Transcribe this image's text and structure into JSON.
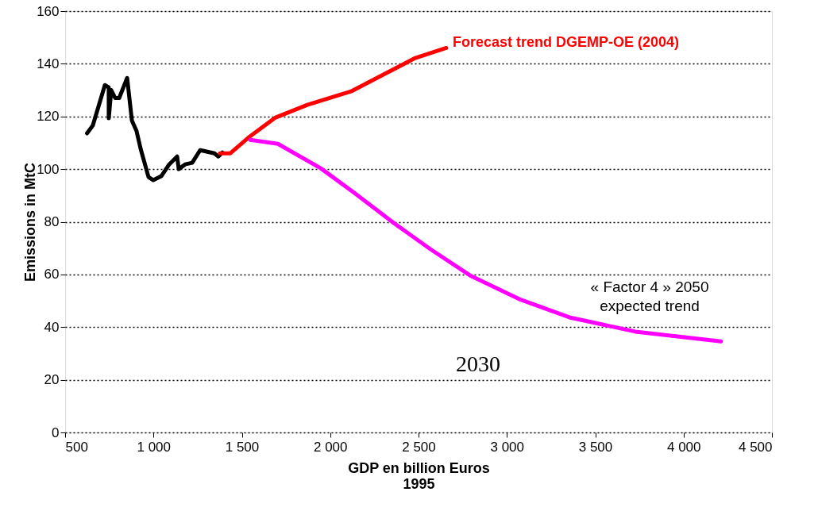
{
  "chart_data": {
    "type": "line",
    "xlabel": "GDP en billion Euros\n1995",
    "ylabel": "Emissions in MtC",
    "xlim": [
      500,
      4500
    ],
    "ylim": [
      0,
      160
    ],
    "xticks": [
      500,
      {
        "value": 1000,
        "label": "1 000"
      },
      {
        "value": 1500,
        "label": "1 500"
      },
      {
        "value": 2000,
        "label": "2 000"
      },
      {
        "value": 2500,
        "label": "2 500"
      },
      {
        "value": 3000,
        "label": "3 000"
      },
      {
        "value": 3500,
        "label": "3 500"
      },
      {
        "value": 4000,
        "label": "4 000"
      },
      {
        "value": 4500,
        "label": "4 500"
      }
    ],
    "yticks": [
      0,
      20,
      40,
      60,
      80,
      100,
      120,
      140,
      160
    ],
    "grid": "y",
    "line_style": "solid",
    "marker": "none",
    "series": [
      {
        "color": "#000000",
        "x": [
          624,
          657,
          725,
          747,
          747,
          761,
          783,
          806,
          851,
          878,
          904,
          927,
          972,
          999,
          1044,
          1089,
          1134,
          1143,
          1179,
          1219,
          1264,
          1345,
          1367,
          1390
        ],
        "values": [
          113.6,
          116.6,
          131.9,
          131,
          119.3,
          130,
          127,
          127,
          134.6,
          118.4,
          114.5,
          107.8,
          97,
          95.8,
          97.3,
          101.8,
          104.8,
          100,
          101.8,
          102.4,
          107.2,
          106,
          104.8,
          106.3
        ]
      },
      {
        "name": "Forecast trend  DGEMP-OE (2004)",
        "color": "#ff0000",
        "x": [
          1376,
          1435,
          1538,
          1691,
          1871,
          2118,
          2275,
          2482,
          2657
        ],
        "values": [
          106,
          106,
          112,
          119.6,
          124.4,
          129.5,
          135,
          142.2,
          146
        ]
      },
      {
        "color": "#ff00ff",
        "x": [
          1547,
          1704,
          1947,
          2136,
          2361,
          2567,
          2792,
          3071,
          3354,
          3727,
          4212
        ],
        "values": [
          111.1,
          109.6,
          100.3,
          91,
          79.5,
          69.6,
          59.6,
          50.6,
          43.7,
          38.3,
          34.6
        ]
      }
    ],
    "annotations": [
      "« Factor 4 » 2050\nexpected trend",
      "2030"
    ]
  }
}
